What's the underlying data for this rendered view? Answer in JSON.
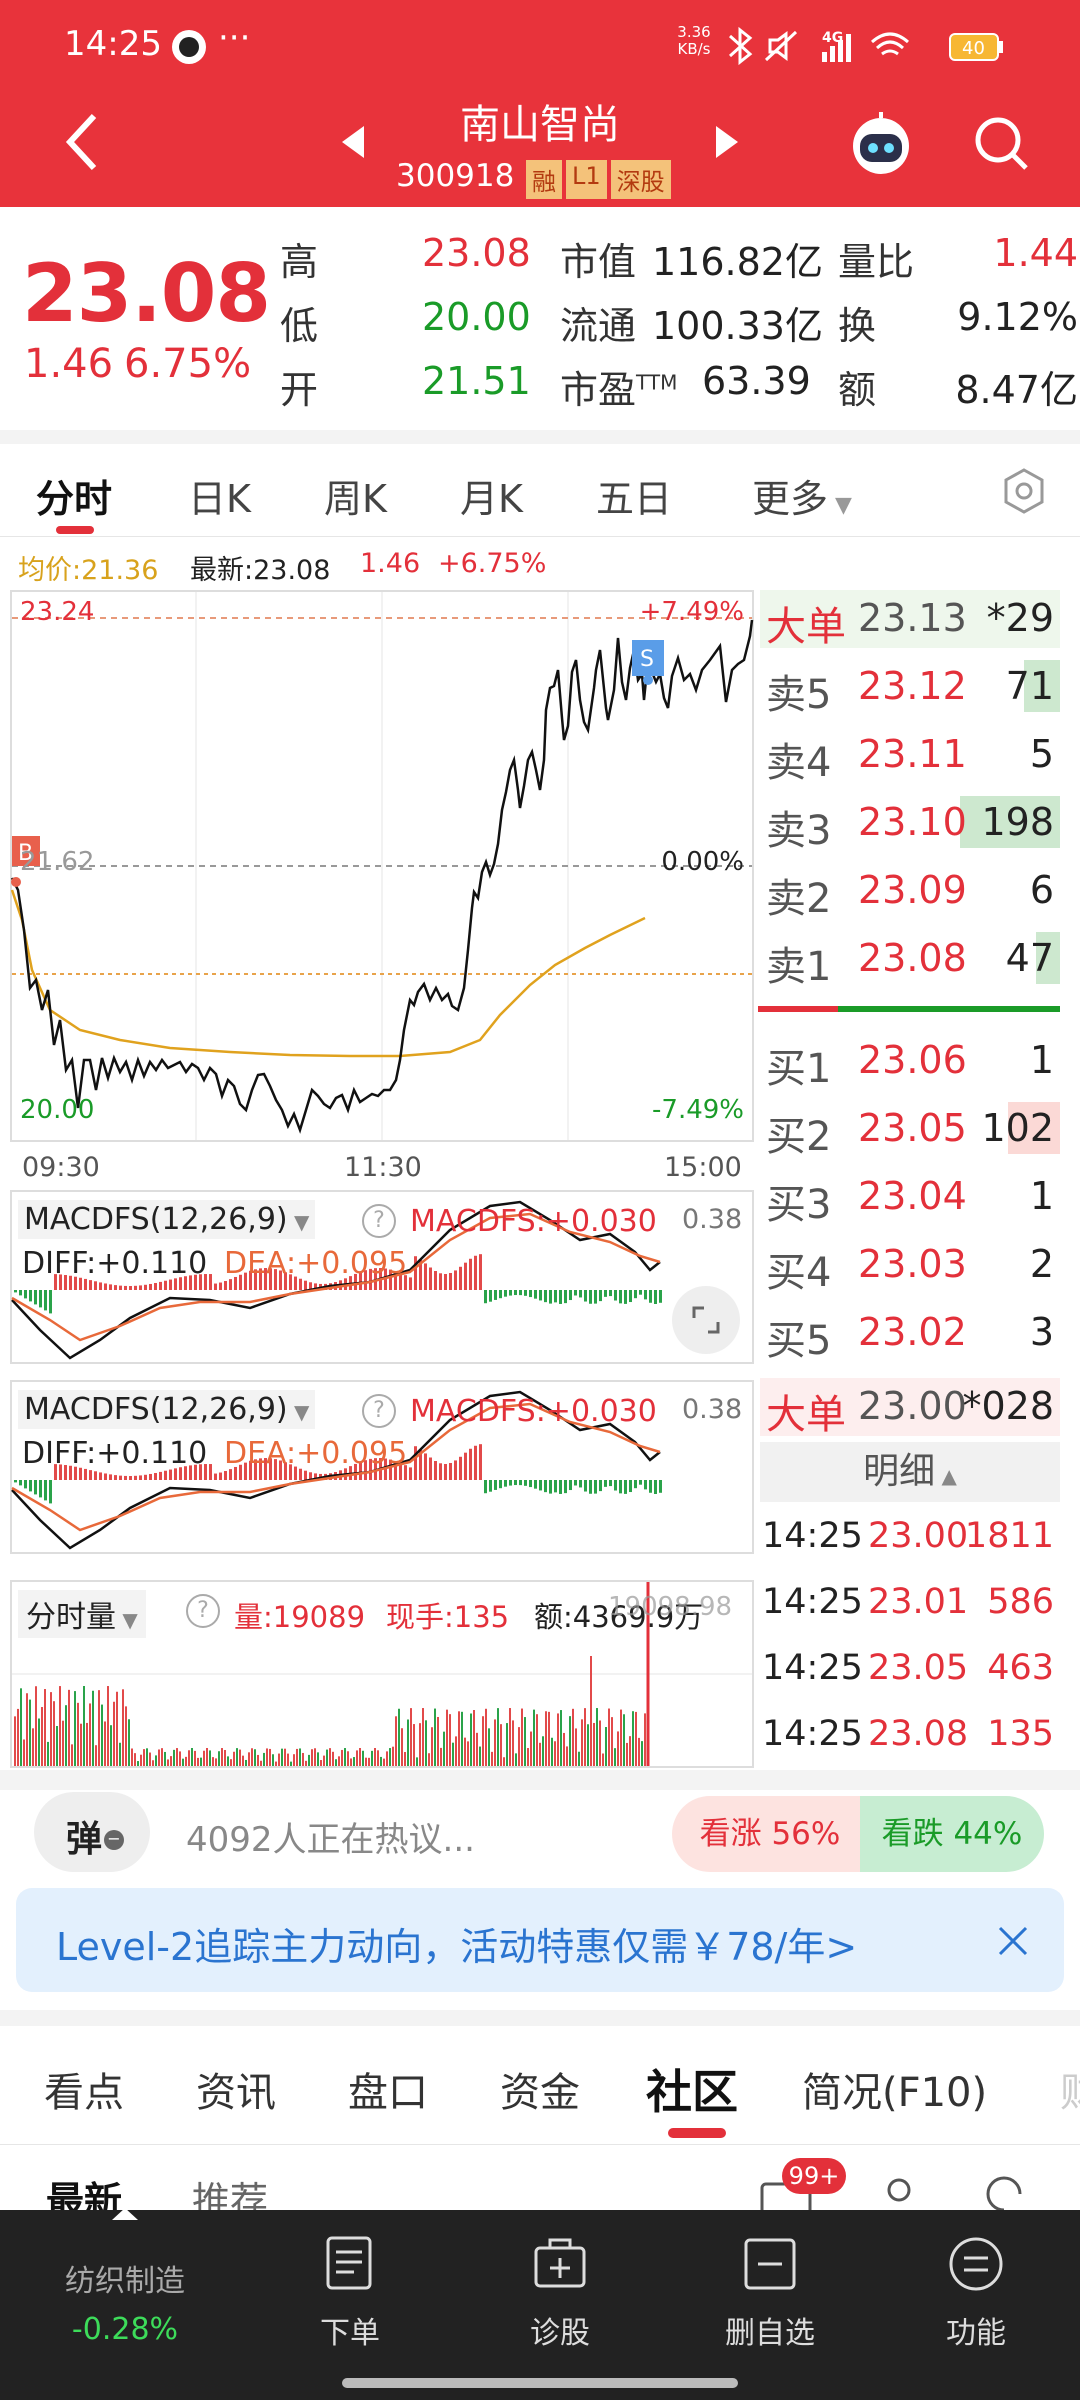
{
  "status_bar": {
    "time": "14:25",
    "more": "···",
    "speed": "3.36\nKB/s",
    "network": "4G",
    "battery": "40"
  },
  "header": {
    "title": "南山智尚",
    "code": "300918",
    "badges": [
      "融",
      "L1",
      "深股"
    ]
  },
  "quote": {
    "price": "23.08",
    "change": "1.46",
    "change_pct": "6.75%",
    "stats": [
      {
        "k": "高",
        "v": "23.08",
        "color": "#e3303a"
      },
      {
        "k": "低",
        "v": "20.00",
        "color": "#1a9b28"
      },
      {
        "k": "开",
        "v": "21.51",
        "color": "#1a9b28"
      }
    ],
    "stats2": [
      {
        "k": "市值",
        "v": "116.82亿"
      },
      {
        "k": "流通",
        "v": "100.33亿"
      },
      {
        "k": "市盈",
        "sup": "TTM",
        "v": "63.39"
      }
    ],
    "stats3": [
      {
        "k": "量比",
        "v": "1.44",
        "color": "#e3303a"
      },
      {
        "k": "换",
        "v": "9.12%",
        "color": "#222"
      },
      {
        "k": "额",
        "v": "8.47亿",
        "color": "#222"
      }
    ]
  },
  "chart_tabs": [
    "分时",
    "日K",
    "周K",
    "月K",
    "五日",
    "更多"
  ],
  "intraday": {
    "avg_label": "均价:21.36",
    "latest_label": "最新:23.08",
    "chg": "1.46",
    "chg_pct": "+6.75%",
    "y_top": "23.24",
    "y_mid": "21.62",
    "y_bot": "20.00",
    "pct_top": "+7.49%",
    "pct_mid": "0.00%",
    "pct_bot": "-7.49%",
    "time_start": "09:30",
    "time_mid": "11:30",
    "time_end": "15:00",
    "b_marker": "B",
    "s_marker": "S"
  },
  "macd1": {
    "title": "MACDFS(12,26,9)",
    "value": "MACDFS:+0.030",
    "scale": "0.38",
    "diff": "DIFF:+0.110",
    "dea": "DEA:+0.095"
  },
  "macd2": {
    "title": "MACDFS(12,26,9)",
    "value": "MACDFS:+0.030",
    "scale": "0.38",
    "diff": "DIFF:+0.110",
    "dea": "DEA:+0.095"
  },
  "volume": {
    "title": "分时量",
    "vol": "量:19089",
    "hand": "现手:135",
    "amount": "额:4369.9万",
    "scale": "19098.98"
  },
  "orderbook": {
    "big1_label": "大单",
    "big1_price": "23.13",
    "big1_qty": "*29",
    "asks": [
      {
        "label": "卖5",
        "price": "23.12",
        "qty": "71",
        "bar": 0.36
      },
      {
        "label": "卖4",
        "price": "23.11",
        "qty": "5",
        "bar": 0.0
      },
      {
        "label": "卖3",
        "price": "23.10",
        "qty": "198",
        "bar": 1.0
      },
      {
        "label": "卖2",
        "price": "23.09",
        "qty": "6",
        "bar": 0.0
      },
      {
        "label": "卖1",
        "price": "23.08",
        "qty": "47",
        "bar": 0.24
      }
    ],
    "bids": [
      {
        "label": "买1",
        "price": "23.06",
        "qty": "1",
        "bar": 0.0
      },
      {
        "label": "买2",
        "price": "23.05",
        "qty": "102",
        "bar": 0.52
      },
      {
        "label": "买3",
        "price": "23.04",
        "qty": "1",
        "bar": 0.0
      },
      {
        "label": "买4",
        "price": "23.03",
        "qty": "2",
        "bar": 0.0
      },
      {
        "label": "买5",
        "price": "23.02",
        "qty": "3",
        "bar": 0.0
      }
    ],
    "big2_label": "大单",
    "big2_price": "23.00",
    "big2_qty": "*028",
    "detail_label": "明细",
    "trades": [
      {
        "t": "14:25",
        "p": "23.00",
        "q": "1811"
      },
      {
        "t": "14:25",
        "p": "23.01",
        "q": "586"
      },
      {
        "t": "14:25",
        "p": "23.05",
        "q": "463"
      },
      {
        "t": "14:25",
        "p": "23.08",
        "q": "135"
      }
    ]
  },
  "discussion": {
    "danmu": "弹",
    "text": "4092人正在热议...",
    "up": "看涨 56%",
    "down": "看跌 44%"
  },
  "promo": {
    "text": "Level-2追踪主力动向，活动特惠仅需￥78/年>"
  },
  "info_tabs": [
    "看点",
    "资讯",
    "盘口",
    "资金",
    "社区",
    "简况(F10)",
    "财"
  ],
  "sub_tabs": [
    "最新",
    "推荐"
  ],
  "msg_badge": "99+",
  "bottom": {
    "sector": "纺织制造",
    "sector_chg": "-0.28%",
    "items": [
      "下单",
      "诊股",
      "删自选",
      "功能"
    ]
  }
}
